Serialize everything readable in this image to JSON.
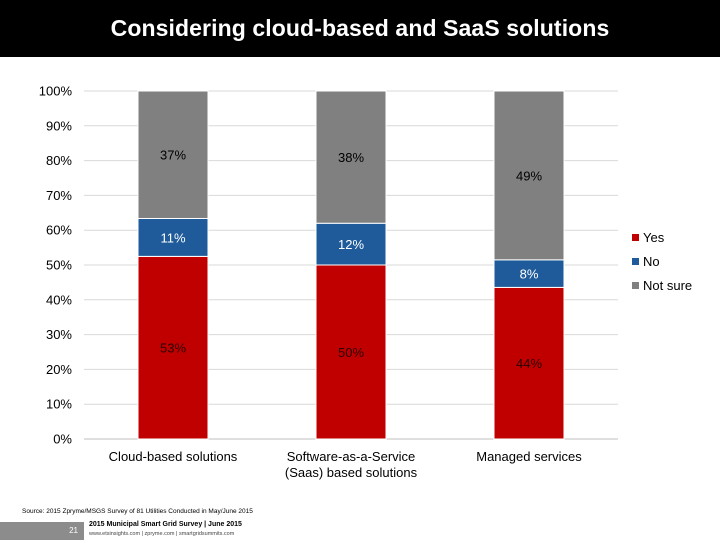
{
  "header": {
    "title": "Considering cloud-based and SaaS solutions"
  },
  "colors": {
    "yes": "#c00000",
    "no": "#1f5b9a",
    "not_sure": "#808080",
    "header_bg": "#000000"
  },
  "chart_data": {
    "type": "bar",
    "stacked": true,
    "categories": [
      [
        "Cloud-based solutions"
      ],
      [
        "Software-as-a-Service",
        "(Saas) based solutions"
      ],
      [
        "Managed services"
      ]
    ],
    "series": [
      {
        "name": "Yes",
        "values": [
          53,
          50,
          44
        ],
        "labels": [
          "53%",
          "50%",
          "44%"
        ]
      },
      {
        "name": "No",
        "values": [
          11,
          12,
          8
        ],
        "labels": [
          "11%",
          "12%",
          "8%"
        ]
      },
      {
        "name": "Not sure",
        "values": [
          37,
          38,
          49
        ],
        "labels": [
          "37%",
          "38%",
          "49%"
        ]
      }
    ],
    "yticks": [
      "0%",
      "10%",
      "20%",
      "30%",
      "40%",
      "50%",
      "60%",
      "70%",
      "80%",
      "90%",
      "100%"
    ],
    "ylim": [
      0,
      100
    ],
    "grid": true,
    "legend": "right"
  },
  "footer": {
    "source": "Source: 2015 Zpryme/MSGS Survey of 81 Utilities Conducted in May/June 2015",
    "page_number": "21",
    "title": "2015 Municipal Smart Grid Survey | June 2015",
    "links": "www.etsinsights.com | zpryme.com | smartgridsummits.com"
  }
}
